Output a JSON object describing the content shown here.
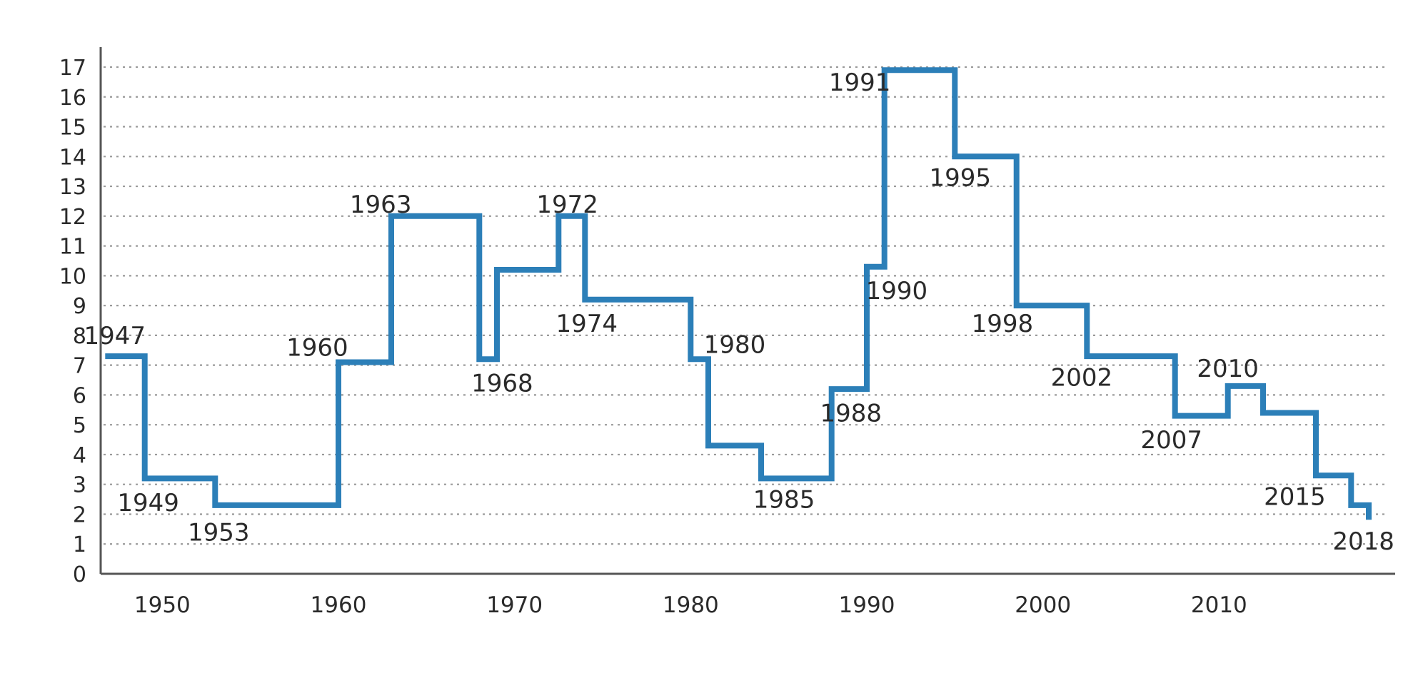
{
  "chart_data": {
    "type": "line",
    "step": true,
    "title": "",
    "xlabel": "",
    "ylabel": "",
    "xlim": [
      1946.5,
      2020
    ],
    "ylim": [
      0,
      17
    ],
    "grid": true,
    "line_color": "#2c7fb8",
    "x_ticks": [
      {
        "value": 1950,
        "label": "1950"
      },
      {
        "value": 1960,
        "label": "1960"
      },
      {
        "value": 1970,
        "label": "1970"
      },
      {
        "value": 1980,
        "label": "1980"
      },
      {
        "value": 1990,
        "label": "1990"
      },
      {
        "value": 2000,
        "label": "2000"
      },
      {
        "value": 2010,
        "label": "2010"
      }
    ],
    "y_ticks": [
      {
        "value": 0,
        "label": "0"
      },
      {
        "value": 1,
        "label": "1"
      },
      {
        "value": 2,
        "label": "2"
      },
      {
        "value": 3,
        "label": "3"
      },
      {
        "value": 4,
        "label": "4"
      },
      {
        "value": 5,
        "label": "5"
      },
      {
        "value": 6,
        "label": "6"
      },
      {
        "value": 7,
        "label": "7"
      },
      {
        "value": 8,
        "label": "8"
      },
      {
        "value": 9,
        "label": "9"
      },
      {
        "value": 10,
        "label": "10"
      },
      {
        "value": 11,
        "label": "11"
      },
      {
        "value": 12,
        "label": "12"
      },
      {
        "value": 13,
        "label": "13"
      },
      {
        "value": 14,
        "label": "14"
      },
      {
        "value": 15,
        "label": "15"
      },
      {
        "value": 16,
        "label": "16"
      },
      {
        "value": 17,
        "label": "17"
      }
    ],
    "steps": [
      {
        "year": 1947,
        "value": 7.3
      },
      {
        "year": 1949,
        "value": 3.2
      },
      {
        "year": 1953,
        "value": 2.3
      },
      {
        "year": 1960,
        "value": 7.1
      },
      {
        "year": 1963,
        "value": 12.0
      },
      {
        "year": 1968,
        "value": 7.2
      },
      {
        "year": 1969,
        "value": 10.2
      },
      {
        "year": 1972.5,
        "value": 12.0
      },
      {
        "year": 1974,
        "value": 9.2
      },
      {
        "year": 1980,
        "value": 7.2
      },
      {
        "year": 1981,
        "value": 4.3
      },
      {
        "year": 1984,
        "value": 3.2
      },
      {
        "year": 1988,
        "value": 6.2
      },
      {
        "year": 1990,
        "value": 10.3
      },
      {
        "year": 1991,
        "value": 16.9
      },
      {
        "year": 1995,
        "value": 14.0
      },
      {
        "year": 1998.5,
        "value": 9.0
      },
      {
        "year": 2002.5,
        "value": 7.3
      },
      {
        "year": 2007.5,
        "value": 5.3
      },
      {
        "year": 2010.5,
        "value": 6.3
      },
      {
        "year": 2012.5,
        "value": 5.4
      },
      {
        "year": 2015.5,
        "value": 3.3
      },
      {
        "year": 2017.5,
        "value": 2.3
      },
      {
        "year": 2018.5,
        "value": 2.1
      }
    ],
    "annotations": [
      {
        "label": "1947",
        "x": 1947.3,
        "y": 8.0
      },
      {
        "label": "1949",
        "x": 1949.2,
        "y": 2.4
      },
      {
        "label": "1953",
        "x": 1953.2,
        "y": 1.4
      },
      {
        "label": "1960",
        "x": 1958.8,
        "y": 7.6
      },
      {
        "label": "1963",
        "x": 1962.4,
        "y": 12.4
      },
      {
        "label": "1968",
        "x": 1969.3,
        "y": 6.4
      },
      {
        "label": "1972",
        "x": 1973.0,
        "y": 12.4
      },
      {
        "label": "1974",
        "x": 1974.1,
        "y": 8.4
      },
      {
        "label": "1980",
        "x": 1982.5,
        "y": 7.7
      },
      {
        "label": "1985",
        "x": 1985.3,
        "y": 2.5
      },
      {
        "label": "1988",
        "x": 1989.1,
        "y": 5.4
      },
      {
        "label": "1990",
        "x": 1991.7,
        "y": 9.5
      },
      {
        "label": "1991",
        "x": 1989.6,
        "y": 16.5
      },
      {
        "label": "1995",
        "x": 1995.3,
        "y": 13.3
      },
      {
        "label": "1998",
        "x": 1997.7,
        "y": 8.4
      },
      {
        "label": "2002",
        "x": 2002.2,
        "y": 6.6
      },
      {
        "label": "2007",
        "x": 2007.3,
        "y": 4.5
      },
      {
        "label": "2010",
        "x": 2010.5,
        "y": 6.9
      },
      {
        "label": "2015",
        "x": 2014.3,
        "y": 2.6
      },
      {
        "label": "2018",
        "x": 2018.2,
        "y": 1.1
      }
    ]
  }
}
